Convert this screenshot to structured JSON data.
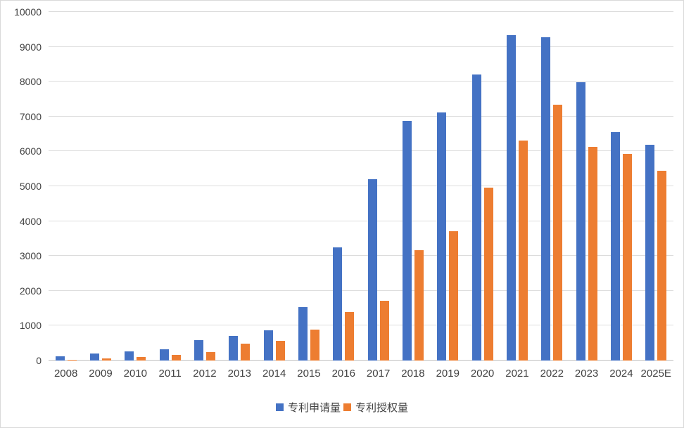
{
  "chart_data": {
    "type": "bar",
    "title": "",
    "xlabel": "",
    "ylabel": "",
    "categories": [
      "2008",
      "2009",
      "2010",
      "2011",
      "2012",
      "2013",
      "2014",
      "2015",
      "2016",
      "2017",
      "2018",
      "2019",
      "2020",
      "2021",
      "2022",
      "2023",
      "2024",
      "2025E"
    ],
    "series": [
      {
        "name": "专利申请量",
        "color": "#4472c4",
        "values": [
          120,
          200,
          270,
          330,
          580,
          700,
          870,
          1530,
          3250,
          5200,
          6880,
          7120,
          8210,
          9330,
          9280,
          7990,
          6560,
          6180
        ]
      },
      {
        "name": "专利授权量",
        "color": "#ed7d31",
        "values": [
          30,
          60,
          100,
          170,
          240,
          480,
          570,
          880,
          1400,
          1720,
          3170,
          3700,
          4960,
          6320,
          7330,
          6120,
          5920,
          5450
        ]
      }
    ],
    "ylim": [
      0,
      10000
    ],
    "ytick_interval": 1000,
    "ytick_labels": [
      "0",
      "1000",
      "2000",
      "3000",
      "4000",
      "5000",
      "6000",
      "7000",
      "8000",
      "9000",
      "10000"
    ],
    "grid": true,
    "legend_position": "bottom"
  },
  "colors": {
    "background": "#ffffff",
    "gridline": "#dcdcdc",
    "axis_text": "#404040",
    "series1": "#4472c4",
    "series2": "#ed7d31"
  }
}
